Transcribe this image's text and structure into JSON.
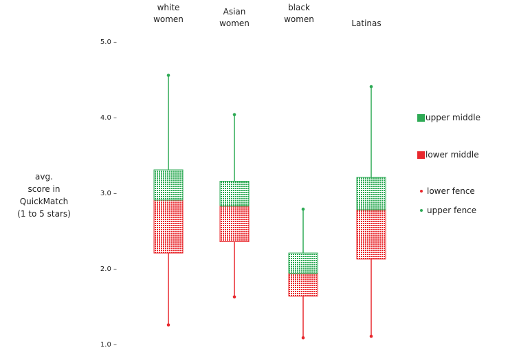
{
  "chart_data": {
    "type": "box",
    "categories": [
      [
        "white",
        "women"
      ],
      [
        "Asian",
        "women"
      ],
      [
        "black",
        "women"
      ],
      [
        "Latinas"
      ]
    ],
    "ylabel": [
      "avg.",
      "score in",
      "QuickMatch",
      "(1 to 5 stars)"
    ],
    "ylim": [
      1.0,
      5.0
    ],
    "yticks": [
      "5.0",
      "4.0",
      "3.0",
      "2.0",
      "1.0"
    ],
    "boxes": [
      {
        "lower_fence": 1.25,
        "q1": 2.2,
        "median": 2.9,
        "q3": 3.3,
        "upper_fence": 4.55
      },
      {
        "lower_fence": 1.62,
        "q1": 2.35,
        "median": 2.82,
        "q3": 3.15,
        "upper_fence": 4.03
      },
      {
        "lower_fence": 1.08,
        "q1": 1.63,
        "median": 1.93,
        "q3": 2.2,
        "upper_fence": 2.78
      },
      {
        "lower_fence": 1.1,
        "q1": 2.12,
        "median": 2.77,
        "q3": 3.2,
        "upper_fence": 4.4
      }
    ],
    "legend": [
      {
        "label": "upper middle",
        "kind": "swatch",
        "color": "#2eaa55"
      },
      {
        "label": "lower middle",
        "kind": "swatch",
        "color": "#e8282d"
      },
      {
        "label": "lower fence",
        "kind": "dot",
        "color": "#e8282d"
      },
      {
        "label": "upper fence",
        "kind": "dot",
        "color": "#2eaa55"
      }
    ],
    "colors": {
      "upper": "#2eaa55",
      "lower": "#e8282d"
    }
  }
}
